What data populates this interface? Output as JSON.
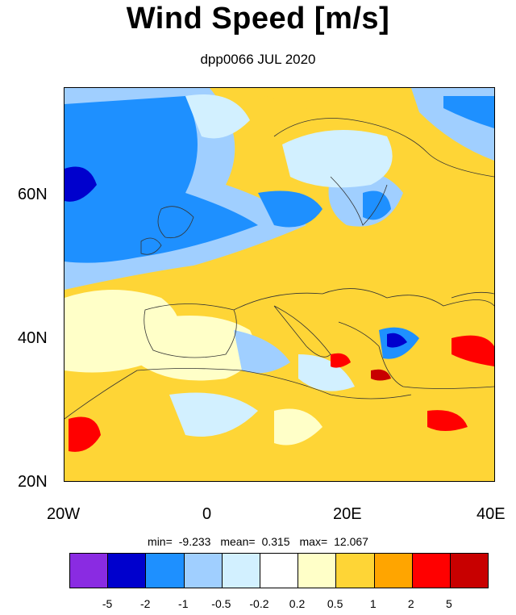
{
  "title": "Wind Speed [m/s]",
  "subtitle": "dpp0066 JUL 2020",
  "lat_labels": [
    "60N",
    "40N",
    "20N"
  ],
  "lon_labels": [
    "20W",
    "0",
    "20E",
    "40E"
  ],
  "stats": {
    "min_label": "min=",
    "min": "-9.233",
    "mean_label": "mean=",
    "mean": "0.315",
    "max_label": "max=",
    "max": "12.067"
  },
  "colorbar": {
    "colors": [
      "#8a2be2",
      "#0000cd",
      "#1e90ff",
      "#a0cfff",
      "#d2f0ff",
      "#ffffff",
      "#ffffc8",
      "#fed536",
      "#ffa500",
      "#ff0000",
      "#c80000"
    ],
    "labels": [
      "-5",
      "-2",
      "-1",
      "-0.5",
      "-0.2",
      "0.2",
      "0.5",
      "1",
      "2",
      "5"
    ]
  },
  "map_extent": {
    "lon": [
      -20,
      40
    ],
    "lat": [
      20,
      75
    ]
  }
}
